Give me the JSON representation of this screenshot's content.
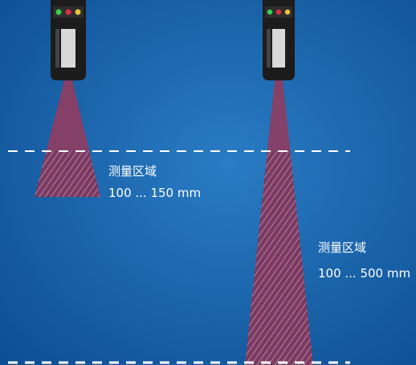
{
  "zones": [
    {
      "label": "测量区域",
      "range": "100 ... 150 mm"
    },
    {
      "label": "测量区域",
      "range": "100 ... 500 mm"
    }
  ]
}
